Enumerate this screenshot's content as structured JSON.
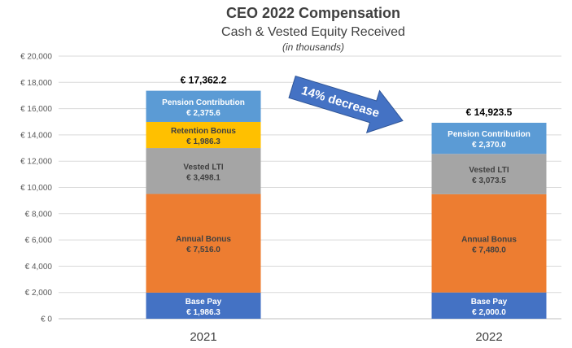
{
  "chart_data": {
    "type": "bar",
    "stacked": true,
    "title": "CEO 2022 Compensation",
    "subtitle": "Cash & Vested Equity Received",
    "unit_note": "(in thousands)",
    "categories": [
      "2021",
      "2022"
    ],
    "ylim": [
      0,
      20000
    ],
    "yticks": [
      0,
      2000,
      4000,
      6000,
      8000,
      10000,
      12000,
      14000,
      16000,
      18000,
      20000
    ],
    "ytick_labels": [
      "€ 0",
      "€ 2,000",
      "€ 4,000",
      "€ 6,000",
      "€ 8,000",
      "€ 10,000",
      "€ 12,000",
      "€ 14,000",
      "€ 16,000",
      "€ 18,000",
      "€ 20,000"
    ],
    "grid": true,
    "series": [
      {
        "name": "Base Pay",
        "color": "#4472C4",
        "label_color": "#ffffff",
        "values": [
          1986.3,
          2000.0
        ],
        "labels": [
          "€ 1,986.3",
          "€ 2,000.0"
        ]
      },
      {
        "name": "Annual Bonus",
        "color": "#ED7D31",
        "label_color": "#404040",
        "values": [
          7516.0,
          7480.0
        ],
        "labels": [
          "€ 7,516.0",
          "€ 7,480.0"
        ]
      },
      {
        "name": "Vested LTI",
        "color": "#A5A5A5",
        "label_color": "#404040",
        "values": [
          3498.1,
          3073.5
        ],
        "labels": [
          "€ 3,498.1",
          "€ 3,073.5"
        ]
      },
      {
        "name": "Retention Bonus",
        "color": "#FFC000",
        "label_color": "#404040",
        "values": [
          1986.3,
          0
        ],
        "labels": [
          "€ 1,986.3",
          ""
        ]
      },
      {
        "name": "Pension Contribution",
        "color": "#5B9BD5",
        "label_color": "#ffffff",
        "values": [
          2375.6,
          2370.0
        ],
        "labels": [
          "€ 2,375.6",
          "€ 2,370.0"
        ]
      }
    ],
    "totals": [
      17362.2,
      14923.5
    ],
    "total_labels": [
      "€ 17,362.2",
      "€ 14,923.5"
    ],
    "annotation": {
      "text": "14% decrease",
      "color": "#4472C4"
    }
  }
}
